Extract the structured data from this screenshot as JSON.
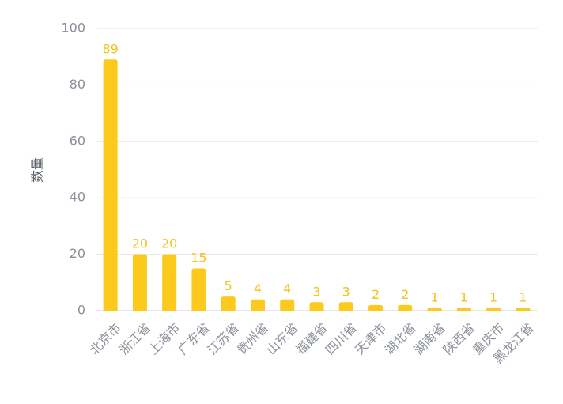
{
  "chart_data": {
    "type": "bar",
    "title": "",
    "xlabel": "",
    "ylabel": "数量",
    "ylim": [
      0,
      100
    ],
    "yticks": [
      0,
      20,
      40,
      60,
      80,
      100
    ],
    "categories": [
      "北京市",
      "浙江省",
      "上海市",
      "广东省",
      "江苏省",
      "贵州省",
      "山东省",
      "福建省",
      "四川省",
      "天津市",
      "湖北省",
      "湖南省",
      "陕西省",
      "重庆市",
      "黑龙江省"
    ],
    "values": [
      89,
      20,
      20,
      15,
      5,
      4,
      4,
      3,
      3,
      2,
      2,
      1,
      1,
      1,
      1
    ],
    "colors": {
      "bar": "#fcc91c",
      "label": "#f5c21b",
      "grid": "#e6e6e6",
      "axis": "#cfcfcf"
    }
  }
}
